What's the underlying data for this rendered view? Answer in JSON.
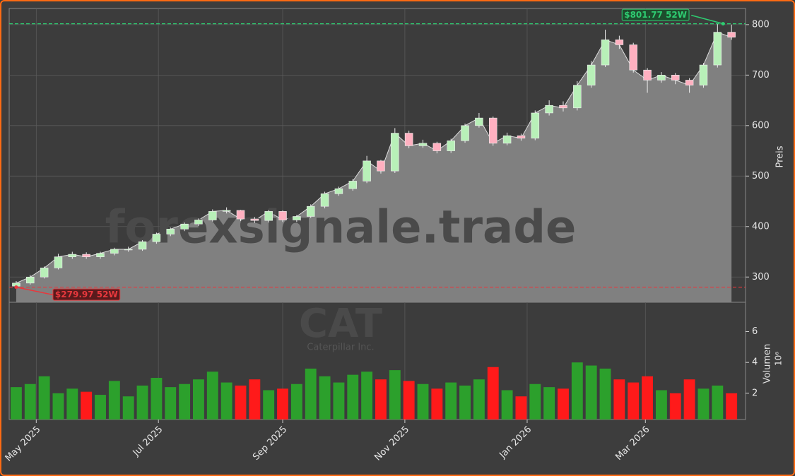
{
  "chart_data": {
    "type": "candlestick",
    "ticker": "CAT",
    "company": "Caterpillar Inc.",
    "watermark": "forexsignale.trade",
    "y_label": "Preis",
    "volume_label": "Volumen",
    "volume_unit": "10⁶",
    "x": [
      0,
      1,
      2,
      3,
      4,
      5,
      6,
      7,
      8,
      9,
      10,
      11,
      12,
      13,
      14,
      15,
      16,
      17,
      18,
      19,
      20,
      21,
      22,
      23,
      24,
      25,
      26,
      27,
      28,
      29,
      30,
      31,
      32,
      33,
      34,
      35,
      36,
      37,
      38,
      39,
      40,
      41,
      42,
      43,
      44,
      45,
      46,
      47,
      48,
      49,
      50,
      51
    ],
    "open": [
      282,
      288,
      300,
      318,
      340,
      345,
      340,
      347,
      355,
      355,
      370,
      385,
      395,
      405,
      413,
      430,
      432,
      415,
      412,
      430,
      413,
      420,
      440,
      465,
      475,
      490,
      530,
      510,
      585,
      560,
      565,
      550,
      570,
      600,
      615,
      565,
      580,
      575,
      625,
      640,
      635,
      680,
      720,
      770,
      760,
      710,
      690,
      700,
      690,
      680,
      720,
      785
    ],
    "high": [
      292,
      304,
      321,
      346,
      350,
      349,
      350,
      358,
      360,
      373,
      388,
      398,
      408,
      416,
      434,
      438,
      433,
      419,
      433,
      432,
      423,
      444,
      469,
      479,
      494,
      540,
      532,
      595,
      590,
      572,
      568,
      574,
      604,
      625,
      618,
      586,
      584,
      630,
      650,
      648,
      688,
      728,
      790,
      778,
      764,
      714,
      706,
      704,
      694,
      724,
      801.77,
      800
    ],
    "low": [
      279.97,
      285,
      297,
      315,
      336,
      336,
      336,
      343,
      350,
      352,
      366,
      381,
      391,
      401,
      410,
      426,
      411,
      407,
      408,
      409,
      409,
      417,
      436,
      461,
      471,
      486,
      505,
      506,
      555,
      556,
      545,
      546,
      566,
      596,
      560,
      561,
      570,
      571,
      620,
      628,
      630,
      675,
      716,
      752,
      705,
      665,
      685,
      682,
      665,
      675,
      715,
      770
    ],
    "close": [
      288,
      300,
      318,
      340,
      345,
      340,
      347,
      355,
      355,
      370,
      385,
      395,
      405,
      413,
      430,
      432,
      415,
      412,
      430,
      413,
      420,
      440,
      465,
      475,
      490,
      530,
      510,
      585,
      560,
      565,
      550,
      570,
      600,
      615,
      565,
      580,
      575,
      625,
      640,
      635,
      680,
      720,
      770,
      760,
      710,
      690,
      700,
      690,
      680,
      720,
      785,
      775
    ],
    "volume": [
      2.4,
      2.6,
      3.1,
      2.0,
      2.3,
      2.1,
      1.9,
      2.8,
      1.8,
      2.5,
      3.0,
      2.4,
      2.6,
      2.9,
      3.4,
      2.7,
      2.5,
      2.9,
      2.2,
      2.3,
      2.6,
      3.6,
      3.1,
      2.7,
      3.2,
      3.4,
      2.9,
      3.5,
      2.8,
      2.6,
      2.3,
      2.7,
      2.5,
      2.9,
      3.7,
      2.2,
      1.8,
      2.6,
      2.4,
      2.3,
      4.0,
      3.8,
      3.6,
      2.9,
      2.7,
      3.1,
      2.2,
      2.0,
      2.9,
      2.3,
      2.5,
      2.0
    ],
    "up_color": "#2ca02c",
    "down_color": "#ff1a1a",
    "area_color": "#808080",
    "xlim": [
      -0.5,
      52
    ],
    "ylim": [
      250,
      832
    ],
    "volume_lim": [
      0.3,
      7.9
    ],
    "xticks": [
      {
        "value": 1.43,
        "label": "May 2025"
      },
      {
        "value": 10.14,
        "label": "Jul 2025"
      },
      {
        "value": 19,
        "label": "Sep 2025"
      },
      {
        "value": 27.71,
        "label": "Nov 2025"
      },
      {
        "value": 36.43,
        "label": "Jan 2026"
      },
      {
        "value": 44.86,
        "label": "Mar 2026"
      }
    ],
    "yticks": [
      300,
      400,
      500,
      600,
      700,
      800
    ],
    "volume_ticks": [
      2,
      4,
      6
    ],
    "grid": true,
    "high_52w": {
      "x": 50.4,
      "value": 801.77,
      "label": "$801.77 52W",
      "color": "#2ecc71"
    },
    "low_52w": {
      "x": 0,
      "value": 279.97,
      "label": "$279.97 52W",
      "color": "#e8383d"
    }
  }
}
